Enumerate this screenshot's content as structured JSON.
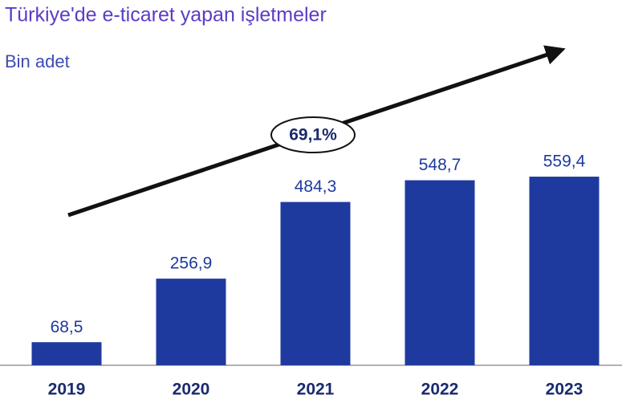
{
  "chart_data": {
    "type": "bar",
    "title": "Türkiye'de e-ticaret yapan işletmeler",
    "subtitle": "Bin adet",
    "categories": [
      "2019",
      "2020",
      "2021",
      "2022",
      "2023"
    ],
    "values": [
      68.5,
      256.9,
      484.3,
      548.7,
      559.4
    ],
    "value_labels": [
      "68,5",
      "256,9",
      "484,3",
      "548,7",
      "559,4"
    ],
    "color": "#1f3a9e",
    "annotation": "69,1%"
  }
}
